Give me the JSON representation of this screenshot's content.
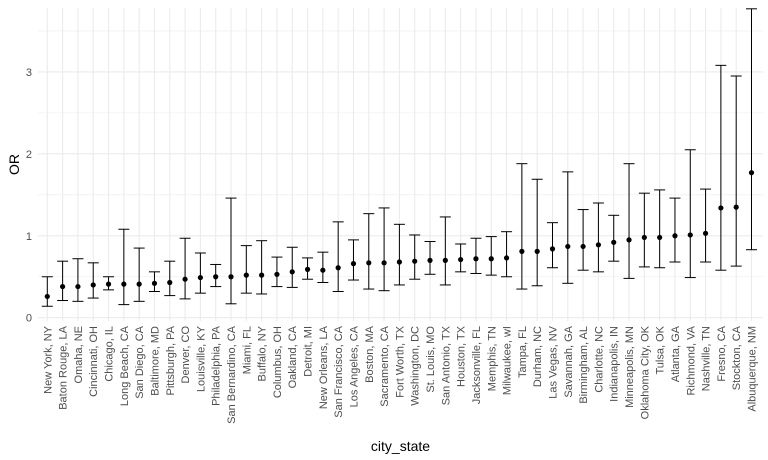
{
  "chart_data": {
    "type": "scatter",
    "title": "",
    "xlabel": "city_state",
    "ylabel": "OR",
    "ylim": [
      -0.04,
      3.78
    ],
    "y_ticks": [
      0,
      1,
      2,
      3
    ],
    "grid": true,
    "legend": "none",
    "error_bars": true,
    "point_color": "#000000",
    "grid_color": "#ebebeb",
    "categories": [
      "New York, NY",
      "Baton Rouge, LA",
      "Omaha, NE",
      "Cincinnati, OH",
      "Chicago, IL",
      "Long Beach, CA",
      "San Diego, CA",
      "Baltimore, MD",
      "Pittsburgh, PA",
      "Denver, CO",
      "Louisville, KY",
      "Philadelphia, PA",
      "San Bernardino, CA",
      "Miami, FL",
      "Buffalo, NY",
      "Columbus, OH",
      "Oakland, CA",
      "Detroit, MI",
      "New Orleans, LA",
      "San Francisco, CA",
      "Los Angeles, CA",
      "Boston, MA",
      "Sacramento, CA",
      "Fort Worth, TX",
      "Washington, DC",
      "St. Louis, MO",
      "San Antonio, TX",
      "Houston, TX",
      "Jacksonville, FL",
      "Memphis, TN",
      "Milwaukee, wI",
      "Tampa, FL",
      "Durham, NC",
      "Las Vegas, NV",
      "Savannah, GA",
      "Birmingham, AL",
      "Charlotte, NC",
      "Indianapolis, IN",
      "Minneapolis, MN",
      "Oklahoma City, OK",
      "Tulsa, OK",
      "Atlanta, GA",
      "Richmond, VA",
      "Nashville, TN",
      "Fresno, CA",
      "Stockton, CA",
      "Albuquerque, NM"
    ],
    "estimates": [
      0.26,
      0.38,
      0.38,
      0.4,
      0.41,
      0.41,
      0.41,
      0.42,
      0.43,
      0.47,
      0.49,
      0.5,
      0.5,
      0.52,
      0.52,
      0.53,
      0.56,
      0.59,
      0.58,
      0.61,
      0.66,
      0.67,
      0.67,
      0.68,
      0.69,
      0.7,
      0.7,
      0.71,
      0.72,
      0.72,
      0.73,
      0.81,
      0.81,
      0.84,
      0.87,
      0.87,
      0.89,
      0.92,
      0.95,
      0.98,
      0.98,
      1.0,
      1.01,
      1.03,
      1.34,
      1.35,
      1.77
    ],
    "ci_low": [
      0.14,
      0.21,
      0.2,
      0.24,
      0.34,
      0.16,
      0.2,
      0.32,
      0.27,
      0.23,
      0.3,
      0.38,
      0.17,
      0.3,
      0.29,
      0.38,
      0.37,
      0.47,
      0.43,
      0.32,
      0.46,
      0.35,
      0.33,
      0.4,
      0.47,
      0.53,
      0.4,
      0.56,
      0.54,
      0.52,
      0.5,
      0.35,
      0.39,
      0.61,
      0.42,
      0.58,
      0.56,
      0.69,
      0.48,
      0.62,
      0.61,
      0.68,
      0.49,
      0.68,
      0.58,
      0.63,
      0.83
    ],
    "ci_high": [
      0.5,
      0.69,
      0.72,
      0.67,
      0.5,
      1.08,
      0.85,
      0.56,
      0.69,
      0.97,
      0.79,
      0.65,
      1.46,
      0.88,
      0.94,
      0.74,
      0.86,
      0.73,
      0.8,
      1.17,
      0.95,
      1.27,
      1.34,
      1.14,
      1.01,
      0.93,
      1.23,
      0.9,
      0.97,
      0.99,
      1.05,
      1.88,
      1.69,
      1.16,
      1.78,
      1.32,
      1.4,
      1.25,
      1.88,
      1.52,
      1.56,
      1.46,
      2.05,
      1.57,
      3.08,
      2.95,
      3.77
    ]
  }
}
